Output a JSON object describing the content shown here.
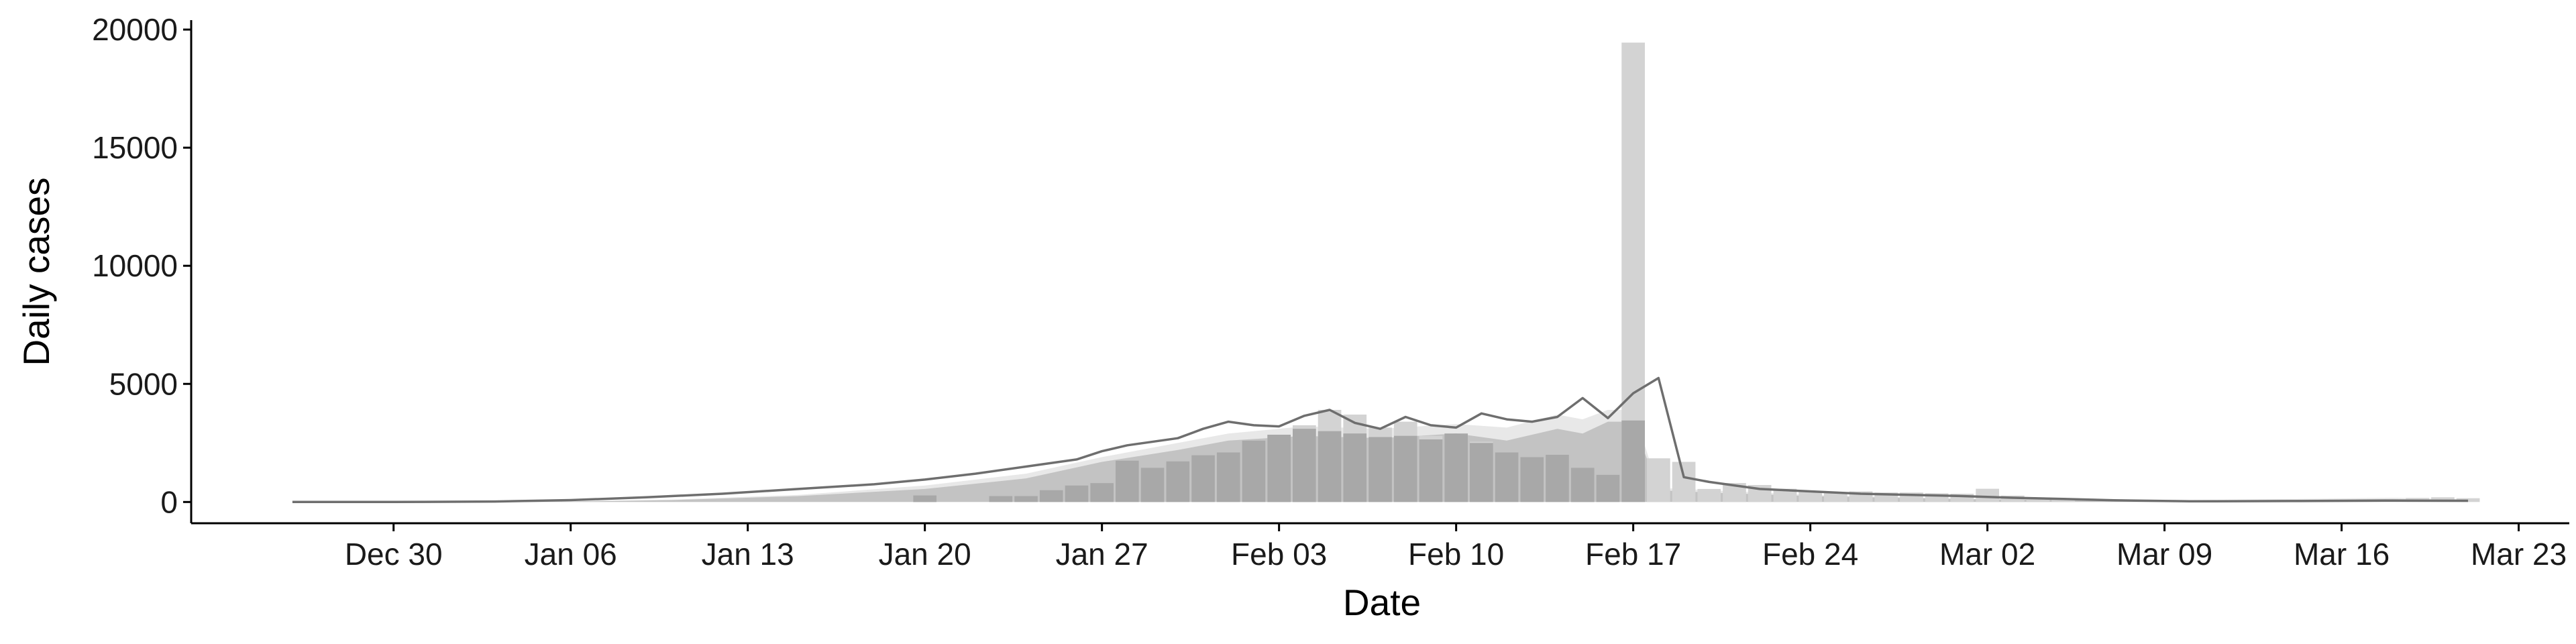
{
  "chart_data": {
    "type": "bar",
    "xlabel": "Date",
    "ylabel": "Daily cases",
    "x_tick_labels": [
      "Dec 30",
      "Jan 06",
      "Jan 13",
      "Jan 20",
      "Jan 27",
      "Feb 03",
      "Feb 10",
      "Feb 17",
      "Feb 24",
      "Mar 02",
      "Mar 09",
      "Mar 16",
      "Mar 23"
    ],
    "x_tick_dates": [
      "2019-12-30",
      "2020-01-06",
      "2020-01-13",
      "2020-01-20",
      "2020-01-27",
      "2020-02-03",
      "2020-02-10",
      "2020-02-17",
      "2020-02-24",
      "2020-03-02",
      "2020-03-09",
      "2020-03-16",
      "2020-03-23"
    ],
    "y_tick_labels": [
      "0",
      "5000",
      "10000",
      "15000",
      "20000"
    ],
    "y_ticks": [
      0,
      5000,
      10000,
      15000,
      20000
    ],
    "xlim": [
      "2019-12-22",
      "2020-03-25"
    ],
    "ylim": [
      -900,
      20400
    ],
    "grid": false,
    "colors": {
      "background": "#ffffff",
      "axis": "#000000",
      "reported_bar": "#d3d3d3",
      "onset_bar": "#a3a3a3",
      "light_area": "#e8e8e8",
      "mid_area": "#c3c3c3",
      "line": "#6e6e6e"
    },
    "series": [
      {
        "type": "bar",
        "x": [
          "2020-01-20",
          "2020-01-23",
          "2020-01-24",
          "2020-01-25",
          "2020-01-26",
          "2020-01-27",
          "2020-01-28",
          "2020-01-29",
          "2020-01-30",
          "2020-01-31",
          "2020-02-01",
          "2020-02-02",
          "2020-02-03",
          "2020-02-04",
          "2020-02-05",
          "2020-02-06",
          "2020-02-07",
          "2020-02-08",
          "2020-02-09",
          "2020-02-10",
          "2020-02-11",
          "2020-02-12",
          "2020-02-13",
          "2020-02-14",
          "2020-02-15",
          "2020-02-16",
          "2020-02-17",
          "2020-02-18",
          "2020-02-19",
          "2020-02-20",
          "2020-02-21",
          "2020-02-22",
          "2020-02-23",
          "2020-02-24",
          "2020-02-25",
          "2020-02-26",
          "2020-02-27",
          "2020-02-28",
          "2020-02-29",
          "2020-03-01",
          "2020-03-02",
          "2020-03-03",
          "2020-03-04",
          "2020-03-05",
          "2020-03-19",
          "2020-03-20",
          "2020-03-21"
        ],
        "values": [
          280,
          250,
          250,
          500,
          700,
          800,
          1750,
          1450,
          1720,
          1980,
          2100,
          2600,
          2850,
          3250,
          3900,
          3700,
          3150,
          3400,
          2800,
          2850,
          2550,
          2100,
          1900,
          2000,
          1450,
          1150,
          19450,
          1850,
          1700,
          550,
          800,
          720,
          560,
          440,
          400,
          450,
          400,
          400,
          370,
          350,
          560,
          270,
          170,
          130,
          170,
          200,
          160
        ]
      },
      {
        "type": "bar",
        "x": [
          "2020-01-20",
          "2020-01-23",
          "2020-01-24",
          "2020-01-25",
          "2020-01-26",
          "2020-01-27",
          "2020-01-28",
          "2020-01-29",
          "2020-01-30",
          "2020-01-31",
          "2020-02-01",
          "2020-02-02",
          "2020-02-03",
          "2020-02-04",
          "2020-02-05",
          "2020-02-06",
          "2020-02-07",
          "2020-02-08",
          "2020-02-09",
          "2020-02-10",
          "2020-02-11",
          "2020-02-12",
          "2020-02-13",
          "2020-02-14",
          "2020-02-15",
          "2020-02-16",
          "2020-02-17"
        ],
        "values": [
          280,
          250,
          250,
          500,
          700,
          800,
          1750,
          1450,
          1720,
          1980,
          2100,
          2600,
          2850,
          3100,
          3000,
          2900,
          2750,
          2800,
          2650,
          2900,
          2500,
          2100,
          1900,
          2000,
          1450,
          1150,
          3450
        ]
      },
      {
        "type": "area",
        "x": [
          "2019-12-26",
          "2020-01-01",
          "2020-01-06",
          "2020-01-10",
          "2020-01-15",
          "2020-01-20",
          "2020-01-24",
          "2020-01-27",
          "2020-01-30",
          "2020-02-01",
          "2020-02-04",
          "2020-02-07",
          "2020-02-10",
          "2020-02-12",
          "2020-02-14",
          "2020-02-15",
          "2020-02-16",
          "2020-02-17",
          "2020-02-18",
          "2020-02-20",
          "2020-02-24",
          "2020-03-01",
          "2020-03-10",
          "2020-03-18",
          "2020-03-21"
        ],
        "values": [
          0,
          0,
          30,
          100,
          300,
          700,
          1200,
          1900,
          2500,
          2900,
          3200,
          3100,
          3300,
          3150,
          3700,
          3500,
          3900,
          3900,
          600,
          500,
          300,
          150,
          80,
          180,
          120
        ]
      },
      {
        "type": "area",
        "x": [
          "2019-12-26",
          "2020-01-01",
          "2020-01-06",
          "2020-01-10",
          "2020-01-15",
          "2020-01-20",
          "2020-01-24",
          "2020-01-27",
          "2020-01-30",
          "2020-02-01",
          "2020-02-04",
          "2020-02-07",
          "2020-02-10",
          "2020-02-12",
          "2020-02-14",
          "2020-02-15",
          "2020-02-16",
          "2020-02-17",
          "2020-02-18",
          "2020-02-20",
          "2020-02-24",
          "2020-03-01",
          "2020-03-10",
          "2020-03-18",
          "2020-03-21"
        ],
        "values": [
          0,
          0,
          20,
          80,
          250,
          550,
          1000,
          1700,
          2200,
          2600,
          2800,
          2700,
          2900,
          2600,
          3100,
          2900,
          3400,
          3400,
          500,
          400,
          250,
          120,
          60,
          120,
          80
        ]
      },
      {
        "type": "line",
        "x": [
          "2019-12-26",
          "2019-12-30",
          "2020-01-03",
          "2020-01-06",
          "2020-01-09",
          "2020-01-12",
          "2020-01-15",
          "2020-01-18",
          "2020-01-20",
          "2020-01-22",
          "2020-01-24",
          "2020-01-26",
          "2020-01-27",
          "2020-01-28",
          "2020-01-30",
          "2020-01-31",
          "2020-02-01",
          "2020-02-02",
          "2020-02-03",
          "2020-02-04",
          "2020-02-05",
          "2020-02-06",
          "2020-02-07",
          "2020-02-08",
          "2020-02-09",
          "2020-02-10",
          "2020-02-11",
          "2020-02-12",
          "2020-02-13",
          "2020-02-14",
          "2020-02-15",
          "2020-02-16",
          "2020-02-17",
          "2020-02-18",
          "2020-02-19",
          "2020-02-20",
          "2020-02-22",
          "2020-02-24",
          "2020-02-26",
          "2020-02-28",
          "2020-03-01",
          "2020-03-03",
          "2020-03-05",
          "2020-03-07",
          "2020-03-10",
          "2020-03-14",
          "2020-03-18",
          "2020-03-21"
        ],
        "values": [
          0,
          0,
          20,
          80,
          200,
          350,
          550,
          750,
          950,
          1200,
          1500,
          1800,
          2150,
          2400,
          2700,
          3100,
          3400,
          3250,
          3200,
          3650,
          3900,
          3350,
          3100,
          3600,
          3250,
          3150,
          3750,
          3500,
          3400,
          3600,
          4400,
          3550,
          4600,
          5250,
          1050,
          850,
          550,
          450,
          350,
          300,
          250,
          180,
          130,
          70,
          30,
          40,
          60,
          50
        ]
      }
    ]
  }
}
